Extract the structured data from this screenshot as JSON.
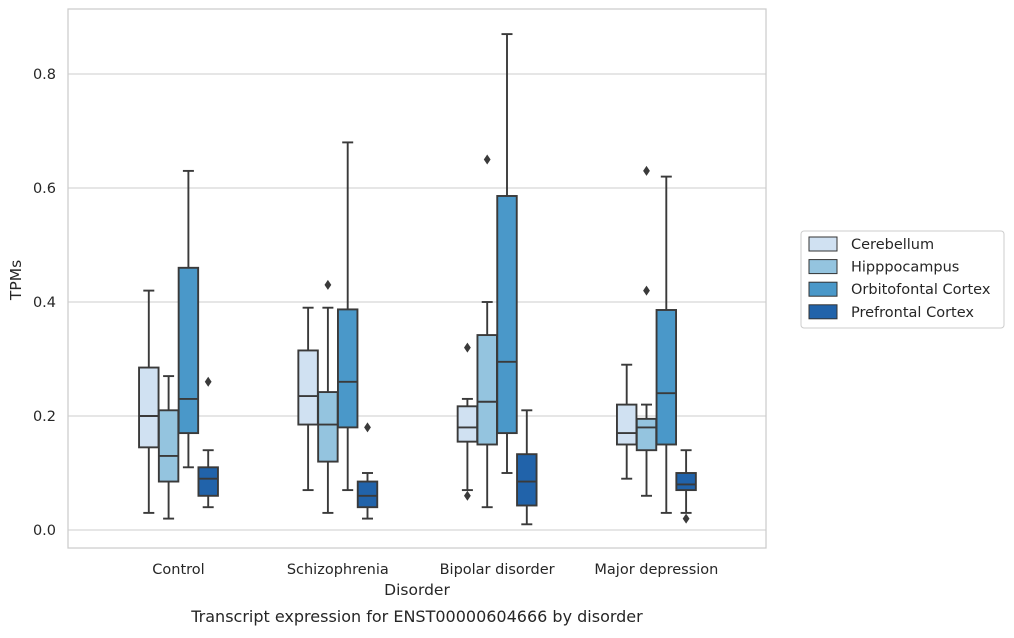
{
  "caption": "Transcript expression for ENST00000604666 by disorder",
  "chart_data": {
    "type": "box",
    "xlabel": "Disorder",
    "ylabel": "TPMs",
    "ylim": [
      -0.03,
      0.92
    ],
    "yticks": [
      0.0,
      0.2,
      0.4,
      0.6,
      0.8
    ],
    "ytick_labels": [
      "0.0",
      "0.2",
      "0.4",
      "0.6",
      "0.8"
    ],
    "grid": "horizontal",
    "legend_position": "right",
    "categories": [
      "Control",
      "Schizophrenia",
      "Bipolar disorder",
      "Major depression"
    ],
    "series": [
      {
        "name": "Cerebellum",
        "color": "#d0e1f2",
        "boxes": [
          {
            "whislo": 0.03,
            "q1": 0.145,
            "med": 0.2,
            "q3": 0.285,
            "whishi": 0.42,
            "fliers": []
          },
          {
            "whislo": 0.07,
            "q1": 0.185,
            "med": 0.235,
            "q3": 0.315,
            "whishi": 0.39,
            "fliers": []
          },
          {
            "whislo": 0.07,
            "q1": 0.155,
            "med": 0.18,
            "q3": 0.217,
            "whishi": 0.23,
            "fliers": [
              0.32,
              0.06
            ]
          },
          {
            "whislo": 0.09,
            "q1": 0.15,
            "med": 0.17,
            "q3": 0.22,
            "whishi": 0.29,
            "fliers": []
          }
        ]
      },
      {
        "name": "Hipppocampus",
        "color": "#94c4df",
        "boxes": [
          {
            "whislo": 0.02,
            "q1": 0.085,
            "med": 0.13,
            "q3": 0.21,
            "whishi": 0.27,
            "fliers": []
          },
          {
            "whislo": 0.03,
            "q1": 0.12,
            "med": 0.185,
            "q3": 0.242,
            "whishi": 0.39,
            "fliers": [
              0.43
            ]
          },
          {
            "whislo": 0.04,
            "q1": 0.15,
            "med": 0.225,
            "q3": 0.342,
            "whishi": 0.4,
            "fliers": [
              0.65
            ]
          },
          {
            "whislo": 0.06,
            "q1": 0.14,
            "med": 0.18,
            "q3": 0.195,
            "whishi": 0.22,
            "fliers": [
              0.63,
              0.42
            ]
          }
        ]
      },
      {
        "name": "Orbitofontal Cortex",
        "color": "#4a98c9",
        "boxes": [
          {
            "whislo": 0.11,
            "q1": 0.17,
            "med": 0.23,
            "q3": 0.46,
            "whishi": 0.63,
            "fliers": []
          },
          {
            "whislo": 0.07,
            "q1": 0.18,
            "med": 0.26,
            "q3": 0.387,
            "whishi": 0.68,
            "fliers": []
          },
          {
            "whislo": 0.1,
            "q1": 0.17,
            "med": 0.295,
            "q3": 0.586,
            "whishi": 0.87,
            "fliers": []
          },
          {
            "whislo": 0.03,
            "q1": 0.15,
            "med": 0.24,
            "q3": 0.386,
            "whishi": 0.62,
            "fliers": []
          }
        ]
      },
      {
        "name": "Prefrontal Cortex",
        "color": "#2163aa",
        "boxes": [
          {
            "whislo": 0.04,
            "q1": 0.06,
            "med": 0.09,
            "q3": 0.11,
            "whishi": 0.14,
            "fliers": [
              0.26
            ]
          },
          {
            "whislo": 0.02,
            "q1": 0.04,
            "med": 0.06,
            "q3": 0.085,
            "whishi": 0.1,
            "fliers": [
              0.18
            ]
          },
          {
            "whislo": 0.01,
            "q1": 0.043,
            "med": 0.085,
            "q3": 0.133,
            "whishi": 0.21,
            "fliers": []
          },
          {
            "whislo": 0.03,
            "q1": 0.07,
            "med": 0.08,
            "q3": 0.1,
            "whishi": 0.14,
            "fliers": [
              0.02
            ]
          }
        ]
      }
    ]
  }
}
